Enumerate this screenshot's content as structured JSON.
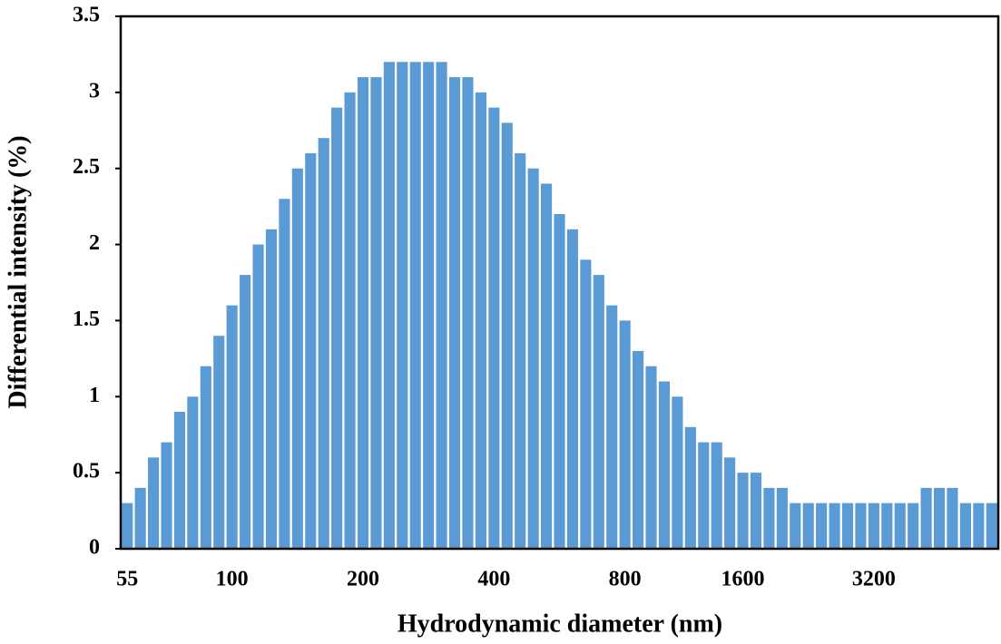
{
  "chart_data": {
    "type": "bar",
    "x_label": "Hydrodynamic  diameter (nm)",
    "y_label": "Differential intensity (%)",
    "categories": [
      "55",
      null,
      null,
      null,
      null,
      null,
      null,
      null,
      "100",
      null,
      null,
      null,
      null,
      null,
      null,
      null,
      null,
      null,
      "200",
      null,
      null,
      null,
      null,
      null,
      null,
      null,
      null,
      null,
      "400",
      null,
      null,
      null,
      null,
      null,
      null,
      null,
      null,
      null,
      "800",
      null,
      null,
      null,
      null,
      null,
      null,
      null,
      null,
      "1600",
      null,
      null,
      null,
      null,
      null,
      null,
      null,
      null,
      null,
      "3200",
      null,
      null,
      null,
      null,
      null,
      null,
      null,
      null,
      null
    ],
    "values": [
      0.3,
      0.4,
      0.6,
      0.7,
      0.9,
      1.0,
      1.2,
      1.4,
      1.6,
      1.8,
      2.0,
      2.1,
      2.3,
      2.5,
      2.6,
      2.7,
      2.9,
      3.0,
      3.1,
      3.1,
      3.2,
      3.2,
      3.2,
      3.2,
      3.2,
      3.1,
      3.1,
      3.0,
      2.9,
      2.8,
      2.6,
      2.5,
      2.4,
      2.2,
      2.1,
      1.9,
      1.8,
      1.6,
      1.5,
      1.3,
      1.2,
      1.1,
      1.0,
      0.8,
      0.7,
      0.7,
      0.6,
      0.5,
      0.5,
      0.4,
      0.4,
      0.3,
      0.3,
      0.3,
      0.3,
      0.3,
      0.3,
      0.3,
      0.3,
      0.3,
      0.3,
      0.4,
      0.4,
      0.4,
      0.3,
      0.3,
      0.3
    ],
    "color": "#5b9bd5",
    "ylim": [
      0,
      3.5
    ],
    "yticks": [
      0,
      0.5,
      1,
      1.5,
      2,
      2.5,
      3,
      3.5
    ],
    "grid": false
  }
}
